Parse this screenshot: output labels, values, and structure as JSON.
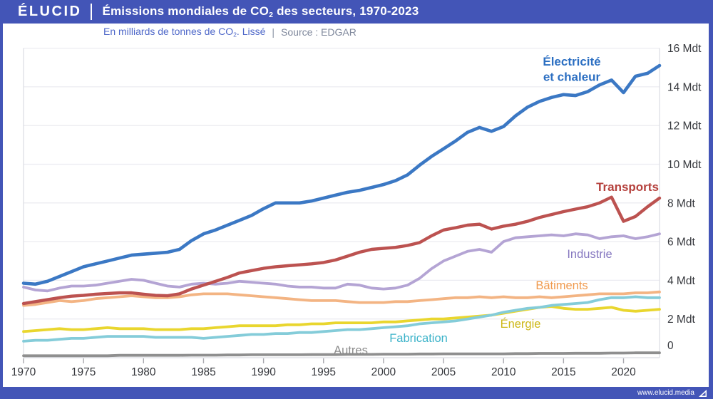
{
  "header": {
    "brand": "ÉLUCID",
    "title_pre": "Émissions mondiales de CO",
    "title_sub": "2",
    "title_post": " des secteurs, 1970-2023"
  },
  "subtitle": {
    "unit_pre": "En milliards de tonnes de CO",
    "unit_sub": "2",
    "unit_post": ". Lissé",
    "separator": "|",
    "source": "Source : EDGAR"
  },
  "footer": {
    "website": "www.elucid.media"
  },
  "colors": {
    "brand_blue": "#4355b7",
    "grid": "#ececf1",
    "plot_border": "#dadce2",
    "tick": "#a8a8ae",
    "axis_text": "#36383d"
  },
  "chart_data": {
    "type": "line",
    "title": "Émissions mondiales de CO2 des secteurs, 1970-2023",
    "ylabel": "Mdt (milliards de tonnes de CO2)",
    "source": "EDGAR",
    "x_start": 1970,
    "x_end": 2023,
    "ylim": [
      0,
      16
    ],
    "grid": "horizontal",
    "legend_position": "direct-labels-on-lines",
    "ytick_labels": [
      "0",
      "2 Mdt",
      "4 Mdt",
      "6 Mdt",
      "8 Mdt",
      "10 Mdt",
      "12 Mdt",
      "14 Mdt",
      "16 Mdt"
    ],
    "xtick_years": [
      1970,
      1975,
      1980,
      1985,
      1990,
      1995,
      2000,
      2005,
      2010,
      2015,
      2020
    ],
    "xtick_labels": [
      "1970",
      "1975",
      "1980",
      "1985",
      "1990",
      "1995",
      "2000",
      "2005",
      "2010",
      "2015",
      "2020"
    ],
    "series": [
      {
        "key": "autres",
        "label": "Autres",
        "color": "#8f8f8f",
        "label_color": "#8c8c8c",
        "values": [
          0.1,
          0.1,
          0.1,
          0.1,
          0.1,
          0.1,
          0.1,
          0.1,
          0.12,
          0.12,
          0.12,
          0.12,
          0.12,
          0.12,
          0.13,
          0.13,
          0.13,
          0.14,
          0.14,
          0.15,
          0.15,
          0.15,
          0.15,
          0.15,
          0.16,
          0.16,
          0.16,
          0.17,
          0.17,
          0.17,
          0.18,
          0.18,
          0.18,
          0.19,
          0.19,
          0.2,
          0.2,
          0.2,
          0.2,
          0.2,
          0.2,
          0.21,
          0.21,
          0.22,
          0.22,
          0.22,
          0.23,
          0.23,
          0.23,
          0.24,
          0.24,
          0.25,
          0.25,
          0.25
        ]
      },
      {
        "key": "energie",
        "label": "Énergie",
        "color": "#e9d62e",
        "label_color": "#cdb818",
        "values": [
          1.35,
          1.4,
          1.45,
          1.5,
          1.45,
          1.45,
          1.5,
          1.55,
          1.5,
          1.5,
          1.5,
          1.45,
          1.45,
          1.45,
          1.5,
          1.5,
          1.55,
          1.6,
          1.65,
          1.65,
          1.65,
          1.65,
          1.7,
          1.7,
          1.75,
          1.75,
          1.8,
          1.8,
          1.8,
          1.8,
          1.85,
          1.85,
          1.9,
          1.95,
          2.0,
          2.0,
          2.05,
          2.1,
          2.15,
          2.2,
          2.3,
          2.4,
          2.5,
          2.6,
          2.65,
          2.55,
          2.5,
          2.5,
          2.55,
          2.6,
          2.45,
          2.4,
          2.45,
          2.5
        ]
      },
      {
        "key": "fabrication",
        "label": "Fabrication",
        "color": "#84ccd9",
        "label_color": "#3cb3c9",
        "values": [
          0.85,
          0.9,
          0.9,
          0.95,
          1.0,
          1.0,
          1.05,
          1.1,
          1.1,
          1.1,
          1.1,
          1.05,
          1.05,
          1.05,
          1.05,
          1.0,
          1.05,
          1.1,
          1.15,
          1.2,
          1.2,
          1.25,
          1.25,
          1.3,
          1.3,
          1.35,
          1.4,
          1.45,
          1.45,
          1.5,
          1.55,
          1.6,
          1.65,
          1.75,
          1.8,
          1.85,
          1.9,
          2.0,
          2.1,
          2.2,
          2.35,
          2.45,
          2.55,
          2.6,
          2.7,
          2.75,
          2.8,
          2.85,
          3.0,
          3.1,
          3.1,
          3.15,
          3.1,
          3.1
        ]
      },
      {
        "key": "batiments",
        "label": "Bâtiments",
        "color": "#f3b483",
        "label_color": "#f09a4e",
        "values": [
          2.7,
          2.75,
          2.85,
          2.95,
          2.9,
          2.95,
          3.05,
          3.1,
          3.15,
          3.2,
          3.15,
          3.1,
          3.1,
          3.15,
          3.25,
          3.3,
          3.3,
          3.3,
          3.25,
          3.2,
          3.15,
          3.1,
          3.05,
          3.0,
          2.95,
          2.95,
          2.95,
          2.9,
          2.85,
          2.85,
          2.85,
          2.9,
          2.9,
          2.95,
          3.0,
          3.05,
          3.1,
          3.1,
          3.15,
          3.1,
          3.15,
          3.1,
          3.1,
          3.15,
          3.1,
          3.15,
          3.2,
          3.25,
          3.3,
          3.3,
          3.3,
          3.35,
          3.35,
          3.4
        ]
      },
      {
        "key": "industrie",
        "label": "Industrie",
        "color": "#b4a4d4",
        "label_color": "#8678c0",
        "values": [
          3.65,
          3.5,
          3.45,
          3.6,
          3.7,
          3.7,
          3.75,
          3.85,
          3.95,
          4.05,
          4.0,
          3.85,
          3.7,
          3.65,
          3.8,
          3.85,
          3.8,
          3.85,
          3.95,
          3.9,
          3.85,
          3.8,
          3.7,
          3.65,
          3.65,
          3.6,
          3.6,
          3.8,
          3.75,
          3.6,
          3.55,
          3.6,
          3.75,
          4.1,
          4.6,
          5.0,
          5.25,
          5.5,
          5.6,
          5.45,
          6.0,
          6.2,
          6.25,
          6.3,
          6.35,
          6.3,
          6.4,
          6.35,
          6.15,
          6.25,
          6.3,
          6.15,
          6.25,
          6.4
        ]
      },
      {
        "key": "transports",
        "label": "Transports",
        "color": "#bc5250",
        "label_color": "#b5413d",
        "values": [
          2.8,
          2.9,
          3.0,
          3.1,
          3.18,
          3.22,
          3.28,
          3.32,
          3.35,
          3.35,
          3.28,
          3.22,
          3.2,
          3.3,
          3.55,
          3.75,
          3.95,
          4.15,
          4.38,
          4.5,
          4.62,
          4.7,
          4.75,
          4.8,
          4.85,
          4.92,
          5.05,
          5.25,
          5.45,
          5.6,
          5.65,
          5.7,
          5.8,
          5.95,
          6.3,
          6.6,
          6.72,
          6.85,
          6.9,
          6.65,
          6.8,
          6.9,
          7.05,
          7.25,
          7.4,
          7.55,
          7.68,
          7.8,
          8.0,
          8.3,
          7.05,
          7.3,
          7.8,
          8.25
        ]
      },
      {
        "key": "electricite",
        "label": "Électricité et chaleur",
        "label_lines": [
          "Électricité",
          "et chaleur"
        ],
        "color": "#3b78c4",
        "label_color": "#2c6fc2",
        "values": [
          3.85,
          3.8,
          3.95,
          4.2,
          4.45,
          4.7,
          4.85,
          5.0,
          5.15,
          5.3,
          5.35,
          5.4,
          5.45,
          5.6,
          6.05,
          6.4,
          6.6,
          6.85,
          7.1,
          7.35,
          7.7,
          8.0,
          8.0,
          8.0,
          8.1,
          8.25,
          8.4,
          8.55,
          8.65,
          8.8,
          8.95,
          9.15,
          9.45,
          9.95,
          10.4,
          10.8,
          11.2,
          11.65,
          11.9,
          11.7,
          11.95,
          12.5,
          12.95,
          13.25,
          13.45,
          13.6,
          13.55,
          13.75,
          14.1,
          14.35,
          13.7,
          14.55,
          14.7,
          15.1
        ]
      }
    ]
  }
}
